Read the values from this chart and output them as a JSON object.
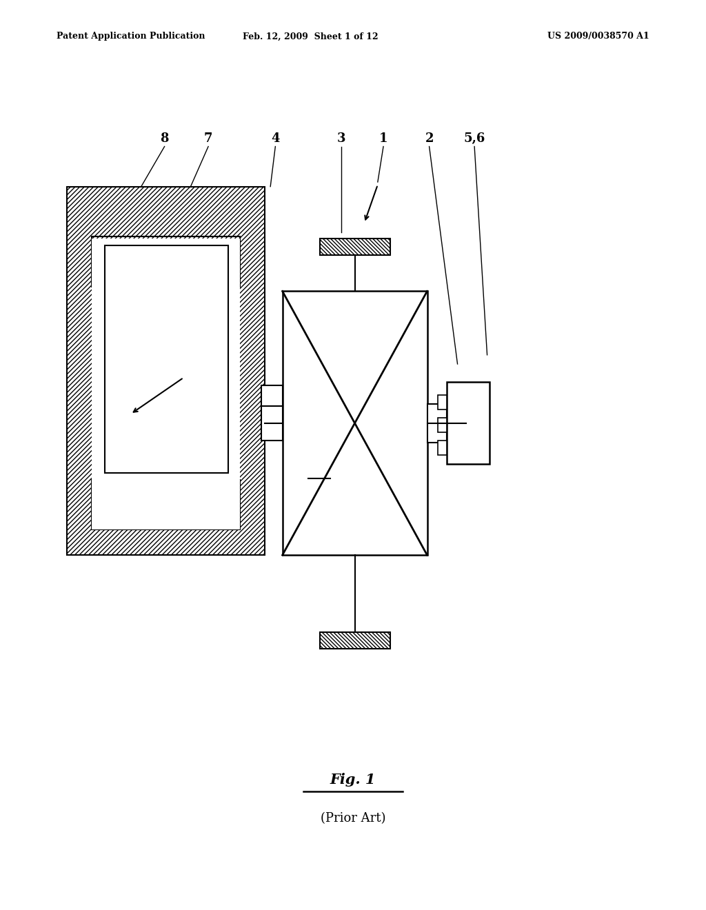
{
  "bg_color": "#ffffff",
  "line_color": "#000000",
  "header_left": "Patent Application Publication",
  "header_mid": "Feb. 12, 2009  Sheet 1 of 12",
  "header_right": "US 2009/0038570 A1",
  "fig_label": "Fig. 1",
  "fig_caption": "(Prior Art)",
  "page_width": 10.24,
  "page_height": 13.2
}
